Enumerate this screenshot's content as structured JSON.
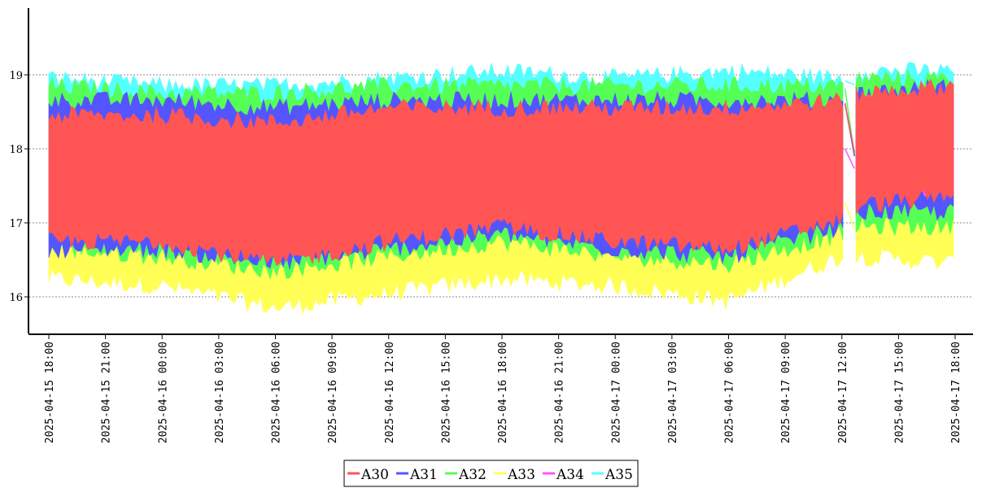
{
  "chart_data": {
    "type": "area",
    "title": "",
    "xlabel": "",
    "ylabel": "",
    "ylim": [
      15.5,
      19.9
    ],
    "yticks": [
      16,
      17,
      18,
      19
    ],
    "grid": "horizontal-dashed",
    "legend_position": "bottom-center",
    "x_start": "2025-04-15 18:00",
    "x_end": "2025-04-17 18:00",
    "xticks": [
      "2025-04-15 18:00",
      "2025-04-15 21:00",
      "2025-04-16 00:00",
      "2025-04-16 03:00",
      "2025-04-16 06:00",
      "2025-04-16 09:00",
      "2025-04-16 12:00",
      "2025-04-16 15:00",
      "2025-04-16 18:00",
      "2025-04-16 21:00",
      "2025-04-17 00:00",
      "2025-04-17 03:00",
      "2025-04-17 06:00",
      "2025-04-17 09:00",
      "2025-04-17 12:00",
      "2025-04-17 15:00",
      "2025-04-17 18:00"
    ],
    "gap": [
      "2025-04-17 12:10",
      "2025-04-17 12:40"
    ],
    "series": [
      {
        "name": "A30",
        "color": "#ff5555",
        "x": [
          "2025-04-15 18:00",
          "2025-04-16 00:00",
          "2025-04-16 06:00",
          "2025-04-16 12:00",
          "2025-04-16 18:00",
          "2025-04-17 00:00",
          "2025-04-17 06:00",
          "2025-04-17 12:00",
          "2025-04-17 13:00",
          "2025-04-17 18:00"
        ],
        "low": [
          16.8,
          16.8,
          16.5,
          16.8,
          17.0,
          16.8,
          16.7,
          17.1,
          17.3,
          17.4
        ],
        "high": [
          18.4,
          18.4,
          18.3,
          18.5,
          18.5,
          18.5,
          18.5,
          18.6,
          18.7,
          18.8
        ]
      },
      {
        "name": "A31",
        "color": "#5555ff",
        "x": [
          "2025-04-15 18:00",
          "2025-04-16 00:00",
          "2025-04-16 06:00",
          "2025-04-16 12:00",
          "2025-04-16 18:00",
          "2025-04-17 00:00",
          "2025-04-17 06:00",
          "2025-04-17 12:00",
          "2025-04-17 13:00",
          "2025-04-17 18:00"
        ],
        "low": [
          16.7,
          16.7,
          16.5,
          16.7,
          16.9,
          16.7,
          16.6,
          17.0,
          17.2,
          17.2
        ],
        "high": [
          18.6,
          18.6,
          18.5,
          18.6,
          18.6,
          18.6,
          18.6,
          18.6,
          18.7,
          18.8
        ]
      },
      {
        "name": "A32",
        "color": "#55ff55",
        "x": [
          "2025-04-15 18:00",
          "2025-04-16 00:00",
          "2025-04-16 06:00",
          "2025-04-16 12:00",
          "2025-04-16 18:00",
          "2025-04-17 00:00",
          "2025-04-17 06:00",
          "2025-04-17 12:00",
          "2025-04-17 13:00",
          "2025-04-17 18:00"
        ],
        "low": [
          16.7,
          16.6,
          16.4,
          16.6,
          16.8,
          16.6,
          16.5,
          16.9,
          17.0,
          17.0
        ],
        "high": [
          18.8,
          18.7,
          18.7,
          18.8,
          18.8,
          18.8,
          18.8,
          18.8,
          18.9,
          18.9
        ]
      },
      {
        "name": "A33",
        "color": "#ffff55",
        "x": [
          "2025-04-15 18:00",
          "2025-04-16 00:00",
          "2025-04-16 06:00",
          "2025-04-16 12:00",
          "2025-04-16 18:00",
          "2025-04-17 00:00",
          "2025-04-17 06:00",
          "2025-04-17 12:00",
          "2025-04-17 13:00",
          "2025-04-17 18:00"
        ],
        "low": [
          16.3,
          16.2,
          15.9,
          16.1,
          16.3,
          16.2,
          16.0,
          16.6,
          16.6,
          16.5
        ],
        "high": [
          17.0,
          17.0,
          16.8,
          17.0,
          17.1,
          17.0,
          16.9,
          17.3,
          17.2,
          17.2
        ]
      },
      {
        "name": "A34",
        "color": "#ff55ff",
        "x": [
          "2025-04-15 18:00",
          "2025-04-16 00:00",
          "2025-04-16 06:00",
          "2025-04-16 12:00",
          "2025-04-16 18:00",
          "2025-04-17 00:00",
          "2025-04-17 06:00",
          "2025-04-17 12:00",
          "2025-04-17 13:00",
          "2025-04-17 18:00"
        ],
        "low": [
          17.2,
          17.2,
          17.0,
          17.2,
          17.3,
          17.2,
          17.1,
          17.4,
          17.5,
          17.5
        ],
        "high": [
          17.8,
          17.8,
          17.7,
          17.8,
          17.9,
          17.8,
          17.8,
          18.0,
          18.0,
          18.0
        ]
      },
      {
        "name": "A35",
        "color": "#55ffff",
        "x": [
          "2025-04-15 18:00",
          "2025-04-16 00:00",
          "2025-04-16 06:00",
          "2025-04-16 12:00",
          "2025-04-16 18:00",
          "2025-04-17 00:00",
          "2025-04-17 06:00",
          "2025-04-17 12:00",
          "2025-04-17 13:00",
          "2025-04-17 18:00"
        ],
        "low": [
          18.6,
          18.6,
          18.5,
          18.6,
          18.7,
          18.7,
          18.7,
          18.7,
          18.8,
          18.8
        ],
        "high": [
          18.9,
          18.8,
          18.8,
          18.9,
          19.0,
          18.9,
          19.0,
          18.9,
          19.0,
          19.0
        ]
      }
    ]
  }
}
